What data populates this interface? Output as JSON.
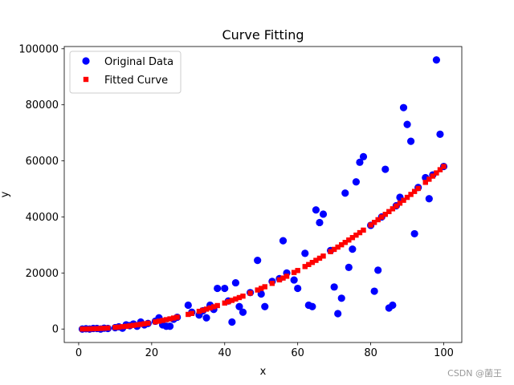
{
  "chart_data": {
    "type": "scatter",
    "title": "Curve Fitting",
    "xlabel": "x",
    "ylabel": "y",
    "watermark": "CSDN @菌王",
    "x": [
      1,
      2,
      3,
      4,
      5,
      6,
      7,
      8,
      10,
      11,
      12,
      13,
      14,
      15,
      16,
      17,
      18,
      19,
      21,
      22,
      23,
      24,
      25,
      26,
      27,
      30,
      31,
      33,
      34,
      35,
      36,
      37,
      38,
      40,
      41,
      42,
      43,
      44,
      45,
      47,
      49,
      50,
      51,
      53,
      55,
      56,
      57,
      59,
      60,
      62,
      63,
      64,
      65,
      66,
      67,
      69,
      70,
      71,
      72,
      73,
      74,
      75,
      76,
      77,
      78,
      80,
      81,
      82,
      83,
      84,
      85,
      86,
      87,
      88,
      89,
      90,
      91,
      92,
      93,
      95,
      96,
      97,
      98,
      99,
      100
    ],
    "series": [
      {
        "name": "Original Data",
        "color": "#0000ff",
        "marker": "circle",
        "values": [
          0,
          100,
          0,
          200,
          200,
          0,
          300,
          200,
          500,
          800,
          300,
          1500,
          1200,
          1800,
          1000,
          2500,
          1500,
          2000,
          2800,
          4000,
          1500,
          1000,
          1000,
          3500,
          4200,
          8500,
          6000,
          5000,
          6500,
          4000,
          8500,
          7000,
          14500,
          14500,
          10000,
          2500,
          16500,
          8000,
          6000,
          13000,
          24500,
          12500,
          8000,
          17000,
          18000,
          31500,
          20000,
          17500,
          14500,
          27000,
          8500,
          8000,
          42500,
          38000,
          41000,
          28000,
          15000,
          5500,
          11000,
          48500,
          22000,
          28500,
          52500,
          59500,
          61500,
          37000,
          13500,
          21000,
          40000,
          57000,
          7500,
          8500,
          44000,
          47000,
          79000,
          73000,
          67000,
          34000,
          50500,
          54000,
          46500,
          55000,
          96000,
          69500,
          58000
        ]
      },
      {
        "name": "Fitted Curve",
        "color": "#ff0000",
        "marker": "square",
        "values": [
          6,
          23,
          52,
          93,
          145,
          209,
          284,
          371,
          580,
          702,
          835,
          980,
          1137,
          1305,
          1485,
          1676,
          1879,
          2094,
          2558,
          2807,
          3068,
          3341,
          3625,
          3921,
          4228,
          5220,
          5574,
          6316,
          6705,
          7105,
          7517,
          7940,
          8375,
          9280,
          9750,
          10231,
          10724,
          11229,
          11745,
          12812,
          13926,
          14500,
          15086,
          16292,
          17545,
          18189,
          18844,
          20190,
          20880,
          22295,
          23020,
          23757,
          24505,
          25265,
          26036,
          27614,
          28420,
          29238,
          30067,
          30908,
          31761,
          32625,
          33501,
          34388,
          35287,
          37120,
          38054,
          38999,
          39956,
          40925,
          41905,
          42897,
          43900,
          44915,
          45942,
          46980,
          48030,
          49091,
          50164,
          52345,
          53453,
          54572,
          55703,
          56846,
          58000
        ]
      }
    ],
    "xlim": [
      -3.95,
      104.95
    ],
    "ylim": [
      -4800,
      100800
    ],
    "xticks": [
      0,
      20,
      40,
      60,
      80,
      100
    ],
    "yticks": [
      0,
      20000,
      40000,
      60000,
      80000,
      100000
    ],
    "legend": "upper left",
    "grid": false
  }
}
